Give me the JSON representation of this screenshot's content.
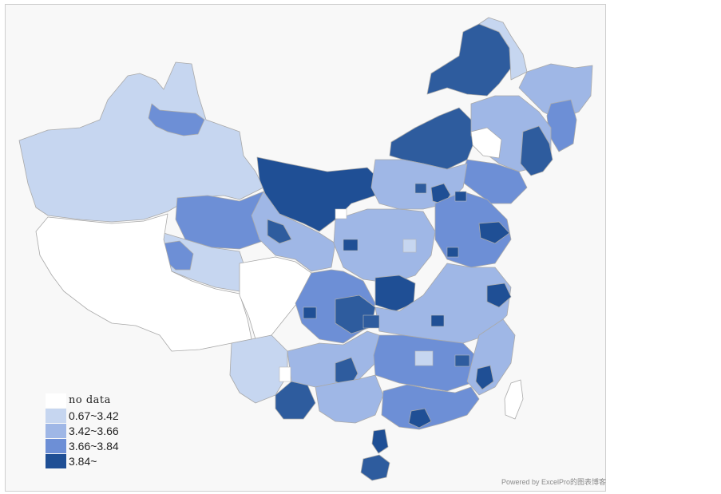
{
  "colors": {
    "background": "#f8f8f8",
    "border": "#cfcfcf",
    "no_data": "#ffffff",
    "class1": "#c6d6f0",
    "class2": "#9fb7e6",
    "class3": "#6d8fd6",
    "class4": "#1f4f95",
    "outline": "#a9a9a9"
  },
  "legend": {
    "items": [
      {
        "label": "no data",
        "color": "#ffffff"
      },
      {
        "label": "0.67~3.42",
        "color": "#c6d6f0"
      },
      {
        "label": "3.42~3.66",
        "color": "#9fb7e6"
      },
      {
        "label": "3.66~3.84",
        "color": "#6d8fd6"
      },
      {
        "label": "3.84~",
        "color": "#1f4f95"
      }
    ]
  },
  "credit": "Powered by ExcelPro的图表博客"
}
